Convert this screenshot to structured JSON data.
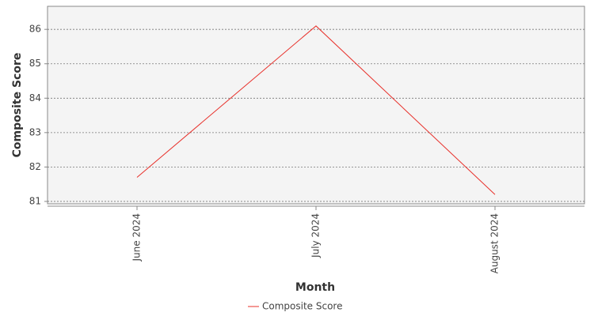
{
  "chart_data": {
    "type": "line",
    "x_label": "Month",
    "y_label": "Composite Score",
    "categories": [
      "June 2024",
      "July 2024",
      "August 2024"
    ],
    "series": [
      {
        "name": "Composite Score",
        "color": "#e8302a",
        "values": [
          81.7,
          86.1,
          81.2
        ]
      }
    ],
    "ylim": [
      80.93,
      86.67
    ],
    "yticks": [
      81,
      82,
      83,
      84,
      85,
      86
    ],
    "grid": true,
    "legend": "bottom"
  }
}
